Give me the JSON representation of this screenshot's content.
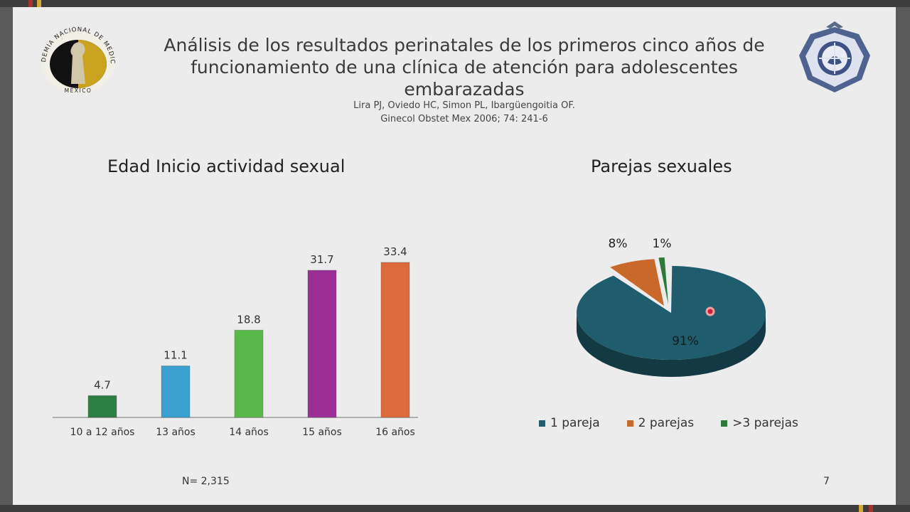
{
  "slide": {
    "title_lines": [
      "Análisis de los resultados perinatales de los primeros cinco años  de",
      "funcionamiento de una clínica de atención para adolescentes",
      "embarazadas"
    ],
    "authors": "Lira PJ, Oviedo HC, Simon PL, Ibargüengoitia OF.",
    "journal": "Ginecol Obstet Mex 2006; 74: 241-6",
    "logo_left_text": "ACADEMIA NACIONAL DE MEDICINA · MÉXICO",
    "n_label": "N= 2,315",
    "page_number": "7"
  },
  "chart_data": [
    {
      "type": "bar",
      "title": "Edad Inicio actividad sexual",
      "categories": [
        "10 a 12 años",
        "13 años",
        "14 años",
        "15 años",
        "16 años"
      ],
      "values": [
        4.7,
        11.1,
        18.8,
        31.7,
        33.4
      ],
      "value_labels": [
        "4.7",
        "11.1",
        "18.8",
        "31.7",
        "33.4"
      ],
      "colors": [
        "#2e7d45",
        "#3aa0cf",
        "#58b849",
        "#9a2f96",
        "#dd6a3a"
      ],
      "ylim": [
        0,
        36
      ],
      "grid": false,
      "legend": "none"
    },
    {
      "type": "pie",
      "title": "Parejas sexuales",
      "labels": [
        "1 pareja",
        "2 parejas",
        ">3 parejas"
      ],
      "values": [
        91,
        8,
        1
      ],
      "value_labels": [
        "91%",
        "8%",
        "1%"
      ],
      "colors": [
        "#1f5c6d",
        "#c8682a",
        "#2f7a3a"
      ],
      "legend": "bottom"
    }
  ]
}
